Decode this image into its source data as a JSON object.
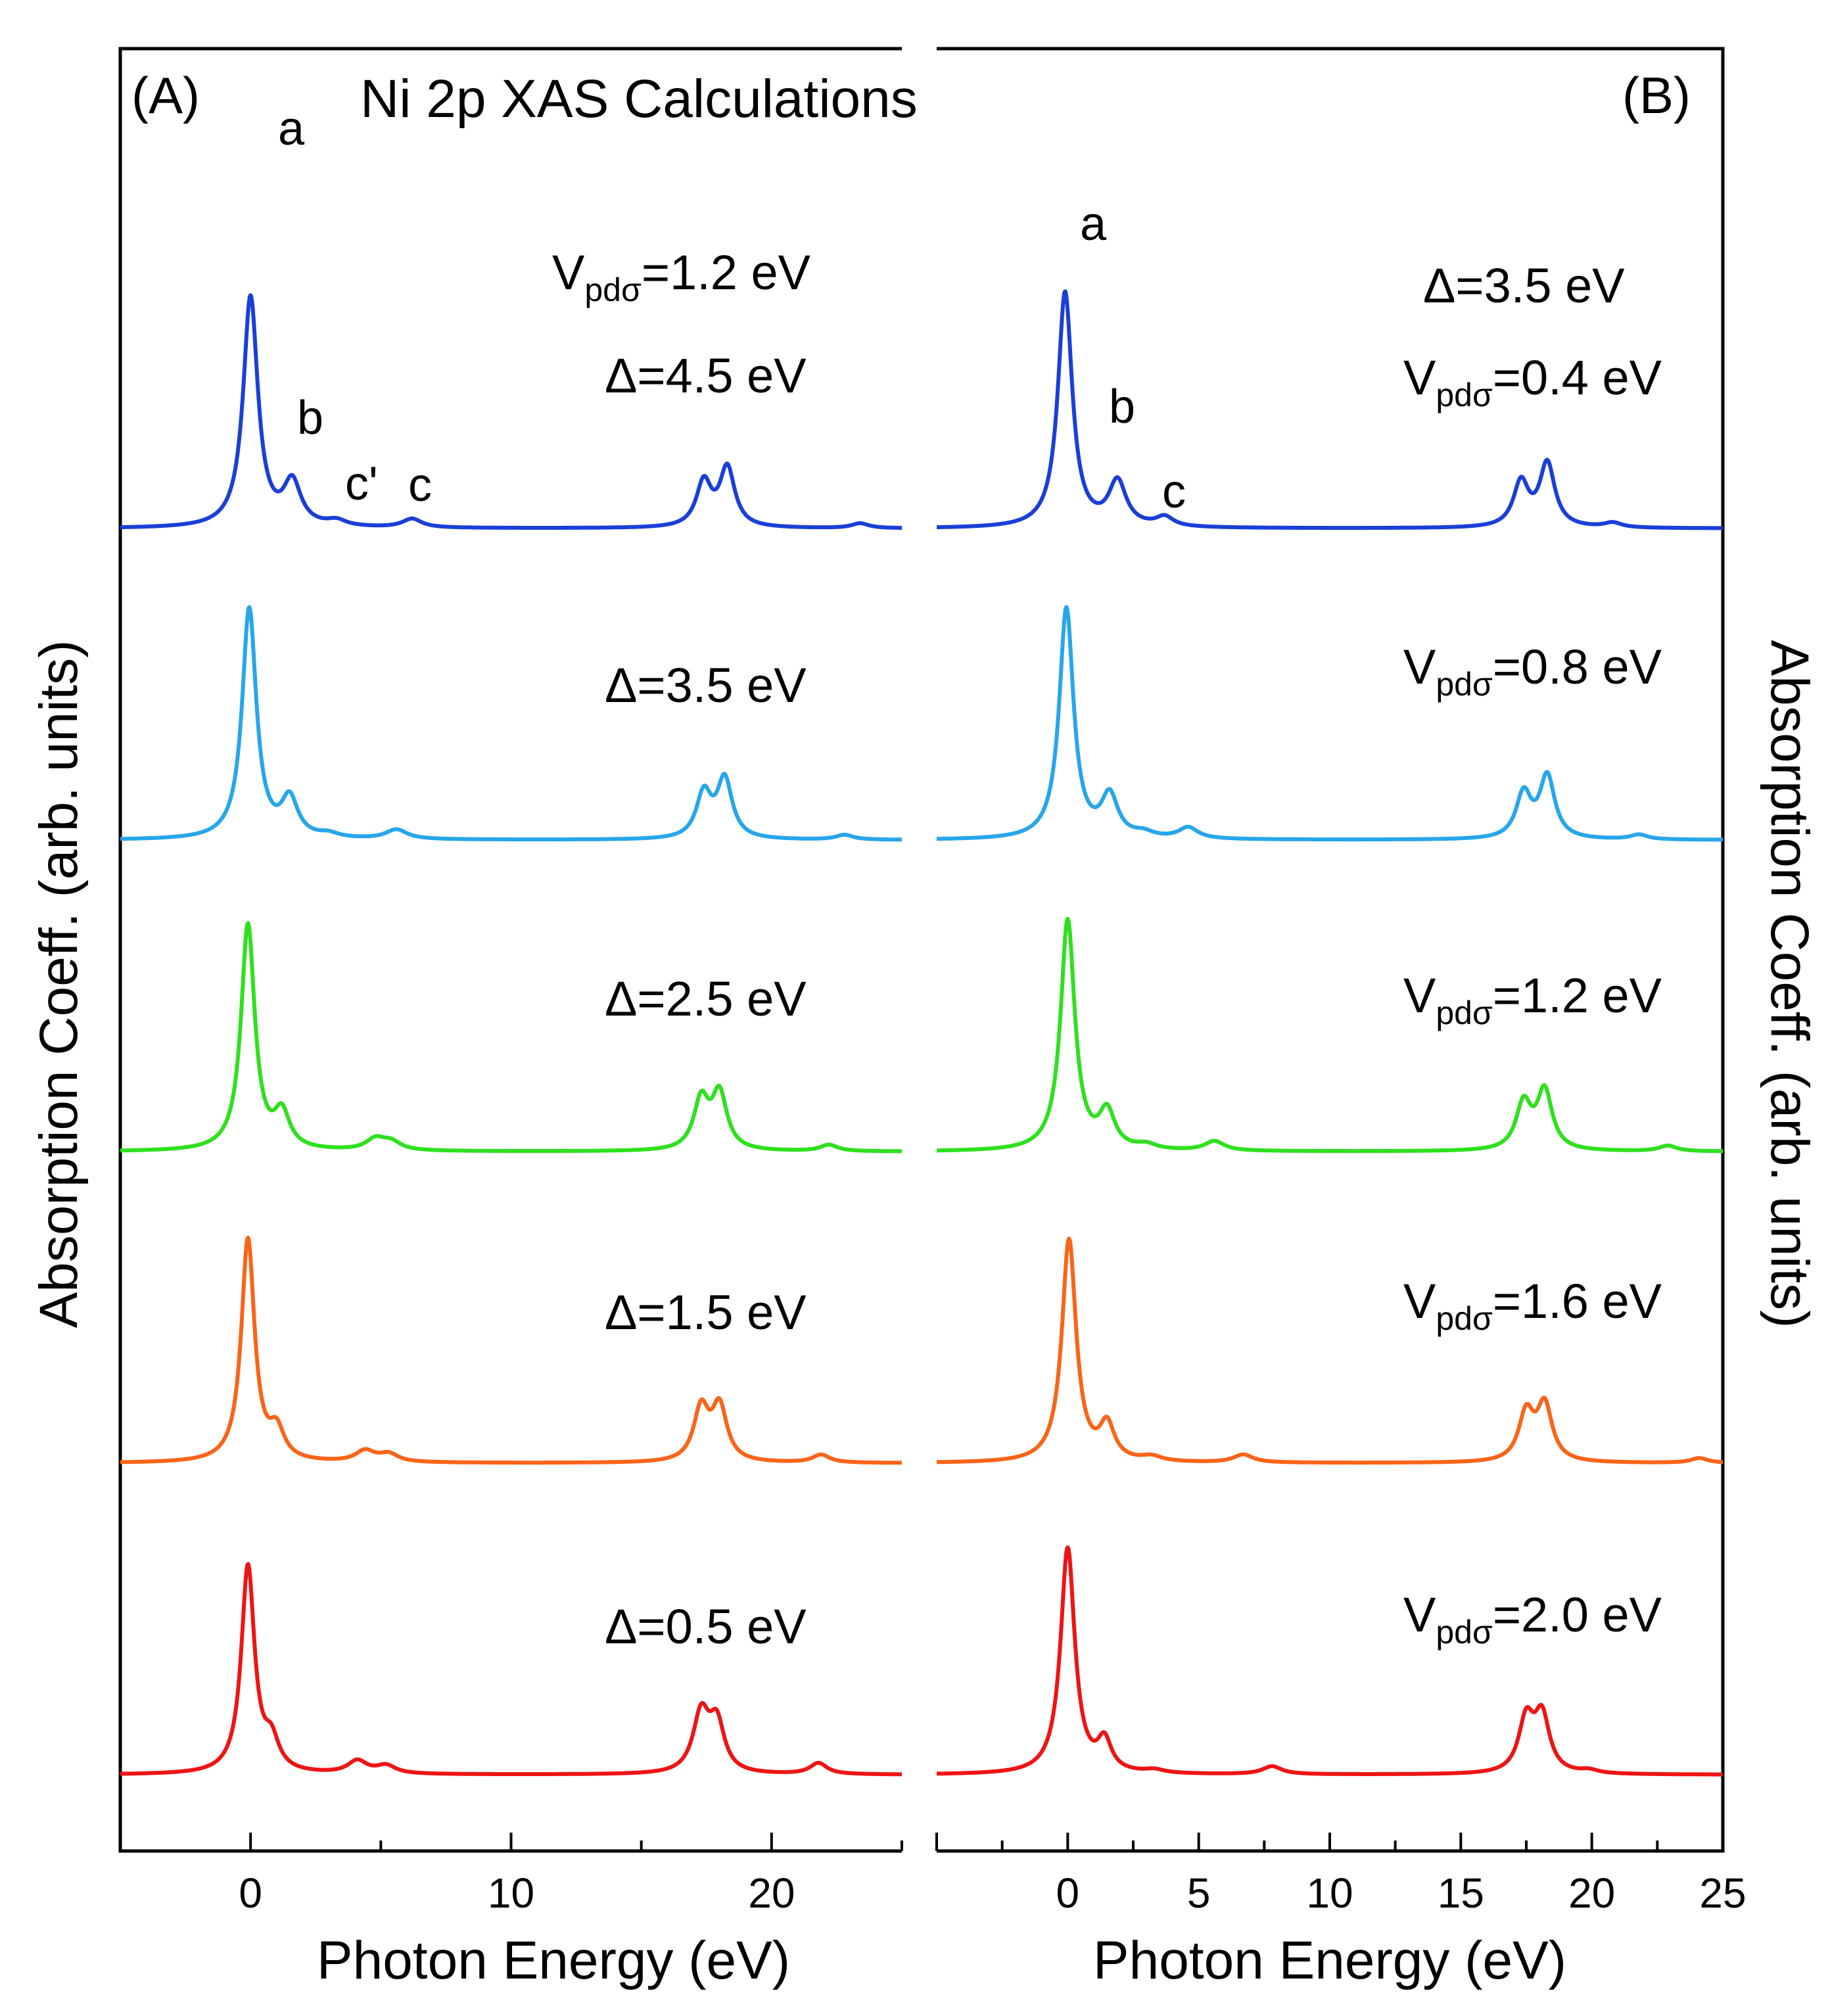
{
  "figure_title": "Ni 2p XAS Calculations",
  "colors": [
    "#1a3fd8",
    "#27a6ea",
    "#2fe01e",
    "#fa6418",
    "#ee1414"
  ],
  "chart_data": [
    {
      "type": "line",
      "panel_label": "(A)",
      "title": "Ni 2p XAS Calculations",
      "xlabel": "Photon Energy (eV)",
      "ylabel": "Absorption Coeff. (arb. units)",
      "xlim": [
        -5,
        25
      ],
      "xticks": [
        "0",
        "10",
        "20"
      ],
      "xtick_values": [
        0,
        10,
        20
      ],
      "y_ticks": "none",
      "fixed_parameter": {
        "text": "Vpdσ=1.2 eV",
        "symbol": "V",
        "subscript": "pdσ",
        "value": "=1.2 eV"
      },
      "peak_labels": [
        "a",
        "b",
        "c'",
        "c"
      ],
      "series": [
        {
          "name": "Δ=4.5 eV",
          "color": "#1a3fd8",
          "baseline": 4,
          "offset": 4,
          "peaks": [
            {
              "x": 0.0,
              "height": 1.45,
              "width": 0.34
            },
            {
              "x": 1.6,
              "height": 0.27,
              "width": 0.4
            },
            {
              "x": 3.3,
              "height": 0.035,
              "width": 0.45
            },
            {
              "x": 6.2,
              "height": 0.055,
              "width": 0.45
            },
            {
              "x": 17.4,
              "height": 0.28,
              "width": 0.35
            },
            {
              "x": 18.3,
              "height": 0.37,
              "width": 0.35
            },
            {
              "x": 23.4,
              "height": 0.03,
              "width": 0.4
            }
          ]
        },
        {
          "name": "Δ=3.5 eV",
          "color": "#27a6ea",
          "baseline": 3,
          "offset": 3,
          "peaks": [
            {
              "x": -0.05,
              "height": 1.45,
              "width": 0.33
            },
            {
              "x": 1.5,
              "height": 0.24,
              "width": 0.38
            },
            {
              "x": 3.0,
              "height": 0.025,
              "width": 0.45
            },
            {
              "x": 5.6,
              "height": 0.06,
              "width": 0.5
            },
            {
              "x": 17.4,
              "height": 0.28,
              "width": 0.35
            },
            {
              "x": 18.2,
              "height": 0.37,
              "width": 0.35
            },
            {
              "x": 22.8,
              "height": 0.03,
              "width": 0.4
            }
          ]
        },
        {
          "name": "Δ=2.5 eV",
          "color": "#2fe01e",
          "baseline": 2,
          "offset": 2,
          "peaks": [
            {
              "x": -0.1,
              "height": 1.42,
              "width": 0.32
            },
            {
              "x": 1.2,
              "height": 0.22,
              "width": 0.36
            },
            {
              "x": 4.8,
              "height": 0.07,
              "width": 0.45
            },
            {
              "x": 5.4,
              "height": 0.05,
              "width": 0.45
            },
            {
              "x": 17.3,
              "height": 0.31,
              "width": 0.35
            },
            {
              "x": 18.0,
              "height": 0.35,
              "width": 0.35
            },
            {
              "x": 22.2,
              "height": 0.04,
              "width": 0.4
            }
          ]
        },
        {
          "name": "Δ=1.5 eV",
          "color": "#fa6418",
          "baseline": 1,
          "offset": 1,
          "peaks": [
            {
              "x": -0.1,
              "height": 1.4,
              "width": 0.31
            },
            {
              "x": 1.0,
              "height": 0.18,
              "width": 0.35
            },
            {
              "x": 4.4,
              "height": 0.07,
              "width": 0.45
            },
            {
              "x": 5.3,
              "height": 0.05,
              "width": 0.45
            },
            {
              "x": 17.3,
              "height": 0.33,
              "width": 0.35
            },
            {
              "x": 18.0,
              "height": 0.34,
              "width": 0.35
            },
            {
              "x": 21.9,
              "height": 0.05,
              "width": 0.4
            }
          ]
        },
        {
          "name": "Δ=0.5 eV",
          "color": "#ee1414",
          "baseline": 0,
          "offset": 0,
          "peaks": [
            {
              "x": -0.1,
              "height": 1.3,
              "width": 0.31
            },
            {
              "x": 0.8,
              "height": 0.18,
              "width": 0.35
            },
            {
              "x": 4.1,
              "height": 0.08,
              "width": 0.45
            },
            {
              "x": 5.2,
              "height": 0.05,
              "width": 0.45
            },
            {
              "x": 17.3,
              "height": 0.37,
              "width": 0.38
            },
            {
              "x": 17.9,
              "height": 0.3,
              "width": 0.35
            },
            {
              "x": 21.8,
              "height": 0.07,
              "width": 0.4
            }
          ]
        }
      ]
    },
    {
      "type": "line",
      "panel_label": "(B)",
      "xlabel": "Photon Energy (eV)",
      "ylabel": "Absorption Coeff. (arb. units)",
      "xlim": [
        -5,
        25
      ],
      "xticks": [
        "0",
        "5",
        "10",
        "15",
        "20",
        "25"
      ],
      "xtick_values": [
        0,
        5,
        10,
        15,
        20,
        25
      ],
      "y_ticks": "none",
      "fixed_parameter": {
        "text": "Δ=3.5 eV"
      },
      "peak_labels": [
        "a",
        "b",
        "c"
      ],
      "series": [
        {
          "name": "Vpdσ=0.4 eV",
          "symbol": "V",
          "subscript": "pdσ",
          "value": "=0.4 eV",
          "color": "#1a3fd8",
          "baseline": 4,
          "offset": 4,
          "peaks": [
            {
              "x": -0.1,
              "height": 1.48,
              "width": 0.33
            },
            {
              "x": 1.9,
              "height": 0.28,
              "width": 0.4
            },
            {
              "x": 3.7,
              "height": 0.06,
              "width": 0.4
            },
            {
              "x": 17.3,
              "height": 0.28,
              "width": 0.35
            },
            {
              "x": 18.3,
              "height": 0.4,
              "width": 0.35
            },
            {
              "x": 20.8,
              "height": 0.03,
              "width": 0.4
            }
          ]
        },
        {
          "name": "Vpdσ=0.8 eV",
          "symbol": "V",
          "subscript": "pdσ",
          "value": "=0.8 eV",
          "color": "#27a6ea",
          "baseline": 3,
          "offset": 3,
          "peaks": [
            {
              "x": -0.05,
              "height": 1.45,
              "width": 0.33
            },
            {
              "x": 1.6,
              "height": 0.26,
              "width": 0.38
            },
            {
              "x": 2.9,
              "height": 0.03,
              "width": 0.45
            },
            {
              "x": 4.6,
              "height": 0.07,
              "width": 0.45
            },
            {
              "x": 17.4,
              "height": 0.28,
              "width": 0.35
            },
            {
              "x": 18.3,
              "height": 0.39,
              "width": 0.35
            },
            {
              "x": 21.8,
              "height": 0.03,
              "width": 0.4
            }
          ]
        },
        {
          "name": "Vpdσ=1.2 eV",
          "symbol": "V",
          "subscript": "pdσ",
          "value": "=1.2 eV",
          "color": "#2fe01e",
          "baseline": 2,
          "offset": 2,
          "peaks": [
            {
              "x": 0.0,
              "height": 1.45,
              "width": 0.33
            },
            {
              "x": 1.5,
              "height": 0.23,
              "width": 0.36
            },
            {
              "x": 3.0,
              "height": 0.03,
              "width": 0.45
            },
            {
              "x": 5.6,
              "height": 0.06,
              "width": 0.45
            },
            {
              "x": 17.4,
              "height": 0.29,
              "width": 0.35
            },
            {
              "x": 18.2,
              "height": 0.37,
              "width": 0.35
            },
            {
              "x": 22.9,
              "height": 0.035,
              "width": 0.4
            }
          ]
        },
        {
          "name": "Vpdσ=1.6 eV",
          "symbol": "V",
          "subscript": "pdσ",
          "value": "=1.6 eV",
          "color": "#fa6418",
          "baseline": 1,
          "offset": 1,
          "peaks": [
            {
              "x": 0.05,
              "height": 1.4,
              "width": 0.33
            },
            {
              "x": 1.5,
              "height": 0.22,
              "width": 0.34
            },
            {
              "x": 3.2,
              "height": 0.03,
              "width": 0.45
            },
            {
              "x": 6.7,
              "height": 0.05,
              "width": 0.45
            },
            {
              "x": 17.5,
              "height": 0.3,
              "width": 0.35
            },
            {
              "x": 18.2,
              "height": 0.35,
              "width": 0.35
            },
            {
              "x": 24.1,
              "height": 0.03,
              "width": 0.4
            }
          ]
        },
        {
          "name": "Vpdσ=2.0 eV",
          "symbol": "V",
          "subscript": "pdσ",
          "value": "=2.0 eV",
          "color": "#ee1414",
          "baseline": 0,
          "offset": 0,
          "peaks": [
            {
              "x": 0.0,
              "height": 1.42,
              "width": 0.33
            },
            {
              "x": 1.4,
              "height": 0.19,
              "width": 0.32
            },
            {
              "x": 3.3,
              "height": 0.02,
              "width": 0.45
            },
            {
              "x": 7.8,
              "height": 0.05,
              "width": 0.45
            },
            {
              "x": 17.5,
              "height": 0.33,
              "width": 0.35
            },
            {
              "x": 18.1,
              "height": 0.35,
              "width": 0.35
            },
            {
              "x": 19.9,
              "height": 0.02,
              "width": 0.4
            }
          ]
        }
      ]
    }
  ]
}
